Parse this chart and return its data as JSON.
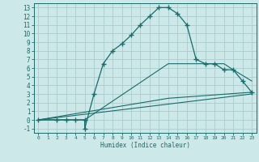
{
  "background_color": "#cce8e8",
  "grid_color": "#aacccc",
  "line_color": "#1a6b6b",
  "xlabel": "Humidex (Indice chaleur)",
  "xlim": [
    -0.5,
    23.5
  ],
  "ylim": [
    -1.5,
    13.5
  ],
  "xticks": [
    0,
    1,
    2,
    3,
    4,
    5,
    6,
    7,
    8,
    9,
    10,
    11,
    12,
    13,
    14,
    15,
    16,
    17,
    18,
    19,
    20,
    21,
    22,
    23
  ],
  "yticks": [
    -1,
    0,
    1,
    2,
    3,
    4,
    5,
    6,
    7,
    8,
    9,
    10,
    11,
    12,
    13
  ],
  "series": [
    {
      "x": [
        0,
        2,
        3,
        4,
        5,
        5,
        6,
        7,
        8,
        9,
        10,
        11,
        12,
        13,
        14,
        15,
        16,
        17,
        18,
        19,
        20,
        21,
        22,
        23
      ],
      "y": [
        0,
        0,
        0,
        0,
        0,
        -1,
        3,
        6.5,
        8,
        8.8,
        9.8,
        11,
        12,
        13,
        13,
        12.3,
        11,
        7,
        6.5,
        6.5,
        5.8,
        5.8,
        4.5,
        3.2
      ],
      "marker": true
    },
    {
      "x": [
        0,
        5,
        14,
        20,
        21,
        23
      ],
      "y": [
        0,
        0,
        6.5,
        6.5,
        5.8,
        4.5
      ],
      "marker": false
    },
    {
      "x": [
        0,
        14,
        23
      ],
      "y": [
        0,
        2.5,
        3.2
      ],
      "marker": false
    },
    {
      "x": [
        0,
        23
      ],
      "y": [
        0,
        3.0
      ],
      "marker": false
    }
  ]
}
